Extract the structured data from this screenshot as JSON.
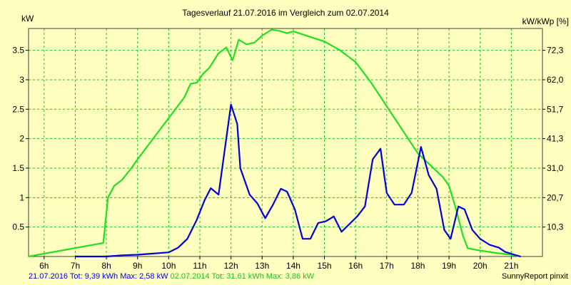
{
  "chart_data": {
    "type": "line",
    "title": "Tagesverlauf 21.07.2016 im Vergleich zum 02.07.2014",
    "ylabel_left": "kW",
    "ylabel_right": "kW/kWp [%]",
    "xlim": [
      5.5,
      22.0
    ],
    "ylim": [
      0,
      3.87
    ],
    "grid": true,
    "x_ticks": [
      {
        "value": 6,
        "label": "6h"
      },
      {
        "value": 7,
        "label": "7h"
      },
      {
        "value": 8,
        "label": "8h"
      },
      {
        "value": 9,
        "label": "9h"
      },
      {
        "value": 10,
        "label": "10h"
      },
      {
        "value": 11,
        "label": "11h"
      },
      {
        "value": 12,
        "label": "12h"
      },
      {
        "value": 13,
        "label": "13h"
      },
      {
        "value": 14,
        "label": "14h"
      },
      {
        "value": 15,
        "label": "15h"
      },
      {
        "value": 16,
        "label": "16h"
      },
      {
        "value": 17,
        "label": "17h"
      },
      {
        "value": 18,
        "label": "18h"
      },
      {
        "value": 19,
        "label": "19h"
      },
      {
        "value": 20,
        "label": "20h"
      },
      {
        "value": 21,
        "label": "21h"
      }
    ],
    "y_ticks_left": [
      {
        "value": 0.5,
        "label": "0.5"
      },
      {
        "value": 1.0,
        "label": "1"
      },
      {
        "value": 1.5,
        "label": "1.5"
      },
      {
        "value": 2.0,
        "label": "2"
      },
      {
        "value": 2.5,
        "label": "2.5"
      },
      {
        "value": 3.0,
        "label": "3"
      },
      {
        "value": 3.5,
        "label": "3.5"
      }
    ],
    "y_ticks_right": [
      {
        "value": 0.5,
        "label": "10,3"
      },
      {
        "value": 1.0,
        "label": "20,7"
      },
      {
        "value": 1.5,
        "label": "31,0"
      },
      {
        "value": 2.0,
        "label": "41,3"
      },
      {
        "value": 2.5,
        "label": "51,7"
      },
      {
        "value": 3.0,
        "label": "62,0"
      },
      {
        "value": 3.5,
        "label": "72,3"
      }
    ],
    "series": [
      {
        "color": "#20E020",
        "points": [
          [
            5.5,
            0.0
          ],
          [
            7.9,
            0.23
          ],
          [
            8.05,
            1.0
          ],
          [
            8.25,
            1.2
          ],
          [
            8.5,
            1.3
          ],
          [
            8.8,
            1.5
          ],
          [
            9.0,
            1.65
          ],
          [
            9.5,
            2.0
          ],
          [
            10.0,
            2.35
          ],
          [
            10.5,
            2.7
          ],
          [
            10.7,
            2.93
          ],
          [
            10.9,
            2.95
          ],
          [
            11.1,
            3.1
          ],
          [
            11.3,
            3.2
          ],
          [
            11.6,
            3.45
          ],
          [
            11.85,
            3.55
          ],
          [
            12.05,
            3.33
          ],
          [
            12.25,
            3.68
          ],
          [
            12.5,
            3.6
          ],
          [
            12.75,
            3.63
          ],
          [
            13.0,
            3.75
          ],
          [
            13.3,
            3.85
          ],
          [
            13.55,
            3.83
          ],
          [
            13.8,
            3.79
          ],
          [
            14.0,
            3.82
          ],
          [
            14.3,
            3.77
          ],
          [
            14.7,
            3.7
          ],
          [
            15.0,
            3.65
          ],
          [
            15.5,
            3.5
          ],
          [
            16.0,
            3.3
          ],
          [
            16.5,
            2.95
          ],
          [
            17.0,
            2.55
          ],
          [
            17.5,
            2.15
          ],
          [
            18.0,
            1.75
          ],
          [
            18.5,
            1.5
          ],
          [
            18.8,
            1.35
          ],
          [
            19.0,
            1.2
          ],
          [
            19.2,
            0.85
          ],
          [
            19.45,
            0.35
          ],
          [
            19.6,
            0.14
          ],
          [
            19.9,
            0.11
          ],
          [
            20.5,
            0.06
          ],
          [
            21.0,
            0.03
          ],
          [
            21.3,
            0.0
          ]
        ]
      },
      {
        "color": "#0000D8",
        "points": [
          [
            7.0,
            0.0
          ],
          [
            8.0,
            0.0
          ],
          [
            8.5,
            0.02
          ],
          [
            9.0,
            0.03
          ],
          [
            9.5,
            0.05
          ],
          [
            10.0,
            0.07
          ],
          [
            10.3,
            0.15
          ],
          [
            10.6,
            0.3
          ],
          [
            10.9,
            0.62
          ],
          [
            11.15,
            0.95
          ],
          [
            11.35,
            1.16
          ],
          [
            11.6,
            1.05
          ],
          [
            12.0,
            2.58
          ],
          [
            12.2,
            2.25
          ],
          [
            12.3,
            1.5
          ],
          [
            12.6,
            1.05
          ],
          [
            12.85,
            0.9
          ],
          [
            13.1,
            0.65
          ],
          [
            13.35,
            0.88
          ],
          [
            13.6,
            1.15
          ],
          [
            13.8,
            1.1
          ],
          [
            14.05,
            0.8
          ],
          [
            14.3,
            0.3
          ],
          [
            14.55,
            0.3
          ],
          [
            14.8,
            0.57
          ],
          [
            15.05,
            0.6
          ],
          [
            15.3,
            0.68
          ],
          [
            15.55,
            0.42
          ],
          [
            15.8,
            0.55
          ],
          [
            16.05,
            0.68
          ],
          [
            16.3,
            0.85
          ],
          [
            16.55,
            1.65
          ],
          [
            16.8,
            1.83
          ],
          [
            17.0,
            1.08
          ],
          [
            17.25,
            0.88
          ],
          [
            17.55,
            0.88
          ],
          [
            17.8,
            1.08
          ],
          [
            18.1,
            1.86
          ],
          [
            18.35,
            1.38
          ],
          [
            18.6,
            1.15
          ],
          [
            18.85,
            0.45
          ],
          [
            19.05,
            0.3
          ],
          [
            19.3,
            0.85
          ],
          [
            19.5,
            0.8
          ],
          [
            19.75,
            0.45
          ],
          [
            20.0,
            0.3
          ],
          [
            20.3,
            0.2
          ],
          [
            20.6,
            0.15
          ],
          [
            20.8,
            0.08
          ],
          [
            21.1,
            0.03
          ],
          [
            21.3,
            0.0
          ]
        ]
      }
    ]
  },
  "footer": {
    "blue_text": "21.07.2016 Tot: 9,39 kWh Max: 2,58 kW",
    "green_text": "02.07.2014 Tot: 31,61 kWh Max: 3,86 kW",
    "right_text": "SunnyReport pinxit"
  },
  "colors": {
    "background": "#FFFFC0",
    "grid": "#20C020",
    "blue_series": "#0000D8",
    "green_series": "#20E020"
  }
}
